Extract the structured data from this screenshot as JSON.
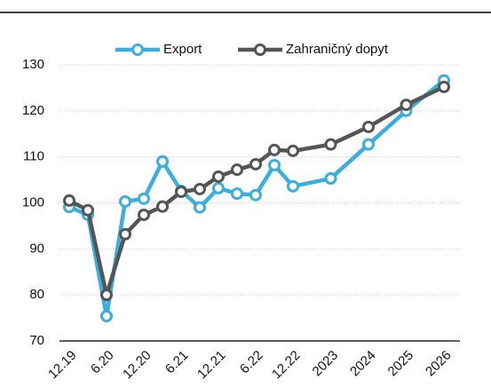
{
  "chart_data": {
    "type": "line",
    "categories": [
      "12.19",
      null,
      "6.20",
      null,
      "12.20",
      null,
      "6.21",
      null,
      "12.21",
      null,
      "6.22",
      null,
      "12.22",
      "2023",
      "2024",
      "2025",
      "2026"
    ],
    "series": [
      {
        "name": "Export",
        "color": "#3aaee0",
        "values": [
          99.1,
          97.4,
          75.4,
          100.3,
          100.9,
          109,
          102.6,
          99,
          103.2,
          102,
          101.7,
          108.2,
          103.6,
          105.3,
          112.7,
          120,
          126.6
        ]
      },
      {
        "name": "Zahraničný dopyt",
        "color": "#555555",
        "values": [
          100.5,
          98.4,
          80,
          93.2,
          97.4,
          99.2,
          102.4,
          103,
          105.7,
          107.2,
          108.4,
          111.5,
          111.3,
          112.7,
          116.5,
          121.3,
          125.2
        ]
      }
    ],
    "ylim": [
      70,
      130
    ],
    "yticks": [
      70,
      80,
      90,
      100,
      110,
      120,
      130
    ],
    "grid": true,
    "legend": "top"
  }
}
